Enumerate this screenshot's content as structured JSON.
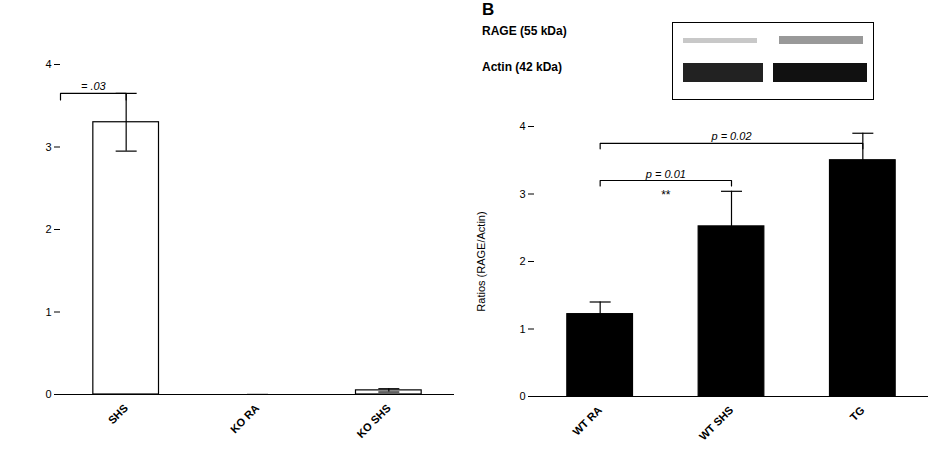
{
  "chart_data": [
    {
      "type": "bar",
      "categories": [
        "SHS",
        "KO RA",
        "KO SHS"
      ],
      "values": [
        3.3,
        0.0,
        0.05
      ],
      "errors": [
        0.35,
        0.0,
        0.02
      ],
      "colors": [
        "white",
        "white",
        "white"
      ],
      "ylim": [
        0,
        4
      ],
      "yticks": [
        0,
        1,
        2,
        3,
        4
      ],
      "annotations": [
        {
          "text": "= .03",
          "to": "SHS",
          "y": 3.65
        }
      ]
    },
    {
      "type": "bar",
      "title": "B",
      "blot_labels": [
        "RAGE (55 kDa)",
        "Actin (42 kDa)"
      ],
      "categories": [
        "WT RA",
        "WT SHS",
        "TG"
      ],
      "values": [
        1.22,
        2.52,
        3.5
      ],
      "errors": [
        0.18,
        0.52,
        0.4
      ],
      "colors": [
        "#000000",
        "#000000",
        "#000000"
      ],
      "ylabel": "Ratios (RAGE/Actin)",
      "ylim": [
        0,
        4
      ],
      "yticks": [
        0,
        1,
        2,
        3,
        4
      ],
      "annotations": [
        {
          "text": "p = 0.01",
          "from": "WT RA",
          "to": "WT SHS",
          "y": 3.2
        },
        {
          "text": "**",
          "between": [
            "WT RA",
            "WT SHS"
          ],
          "y": 2.92
        },
        {
          "text": "p = 0.02",
          "from": "WT RA",
          "to": "TG",
          "y": 3.75
        }
      ]
    }
  ]
}
